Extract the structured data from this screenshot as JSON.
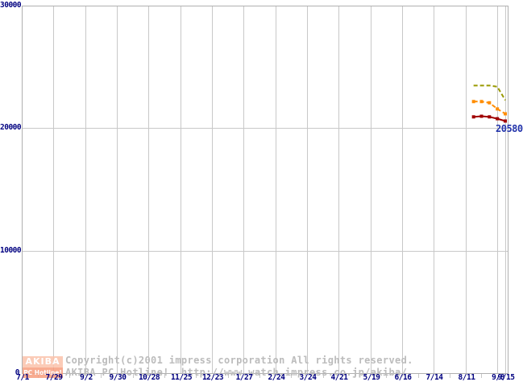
{
  "chart_data": {
    "type": "line",
    "title": "",
    "xlabel": "",
    "ylabel": "",
    "ylim": [
      0,
      30000
    ],
    "grid": true,
    "legend": "none",
    "y_ticks": [
      {
        "label": "30000",
        "value": 30000
      },
      {
        "label": "20000",
        "value": 20000
      },
      {
        "label": "10000",
        "value": 10000
      },
      {
        "label": "0",
        "value": 0
      }
    ],
    "x_ticks": [
      {
        "label": "7/1",
        "pos": 0
      },
      {
        "label": "7/29",
        "pos": 4
      },
      {
        "label": "9/2",
        "pos": 8
      },
      {
        "label": "9/30",
        "pos": 12
      },
      {
        "label": "10/28",
        "pos": 16
      },
      {
        "label": "11/25",
        "pos": 20
      },
      {
        "label": "12/23",
        "pos": 24
      },
      {
        "label": "1/27",
        "pos": 28
      },
      {
        "label": "2/24",
        "pos": 32
      },
      {
        "label": "3/24",
        "pos": 36
      },
      {
        "label": "4/21",
        "pos": 40
      },
      {
        "label": "5/19",
        "pos": 44
      },
      {
        "label": "6/16",
        "pos": 48
      },
      {
        "label": "7/14",
        "pos": 52
      },
      {
        "label": "8/11",
        "pos": 56
      },
      {
        "label": "9/8",
        "pos": 60
      },
      {
        "label": "9/15",
        "pos": 61
      }
    ],
    "x_total": 61,
    "series": [
      {
        "name": "high-price-olive-dashed",
        "color": "#999900",
        "style": "dashed",
        "markers": false,
        "points": [
          {
            "date": "8/18",
            "pos": 57,
            "value": 23480
          },
          {
            "date": "8/25",
            "pos": 58,
            "value": 23480
          },
          {
            "date": "9/1",
            "pos": 59,
            "value": 23480
          },
          {
            "date": "9/8",
            "pos": 60,
            "value": 23380
          },
          {
            "date": "9/15",
            "pos": 61,
            "value": 22280
          }
        ]
      },
      {
        "name": "mid-price-orange-dashed",
        "color": "#ff8c00",
        "style": "dashed",
        "markers": true,
        "points": [
          {
            "date": "8/18",
            "pos": 57,
            "value": 22170
          },
          {
            "date": "8/25",
            "pos": 58,
            "value": 22170
          },
          {
            "date": "9/1",
            "pos": 59,
            "value": 22070
          },
          {
            "date": "9/8",
            "pos": 60,
            "value": 21570
          },
          {
            "date": "9/15",
            "pos": 61,
            "value": 21170
          }
        ]
      },
      {
        "name": "low-price-darkred-solid",
        "color": "#a00000",
        "style": "solid",
        "markers": true,
        "points": [
          {
            "date": "8/18",
            "pos": 57,
            "value": 20920
          },
          {
            "date": "8/25",
            "pos": 58,
            "value": 20970
          },
          {
            "date": "9/1",
            "pos": 59,
            "value": 20920
          },
          {
            "date": "9/8",
            "pos": 60,
            "value": 20770
          },
          {
            "date": "9/15",
            "pos": 61,
            "value": 20580
          }
        ]
      }
    ],
    "annotation": {
      "text": "20580",
      "color": "#2233aa"
    }
  },
  "colors": {
    "background": "#ffffff",
    "grid": "#c8c8c8",
    "axis_border": "#b0b0b0",
    "tick_label": "#000080"
  },
  "watermark": {
    "logo": {
      "line1": "AKIBA",
      "line2": "PC Hotline!"
    },
    "copyright_line1": "Copyright(c)2001 impress corporation All rights reserved.",
    "copyright_line2": "AKIBA PC Hotline!  http://www.watch.impress.co.jp/akiba/"
  }
}
